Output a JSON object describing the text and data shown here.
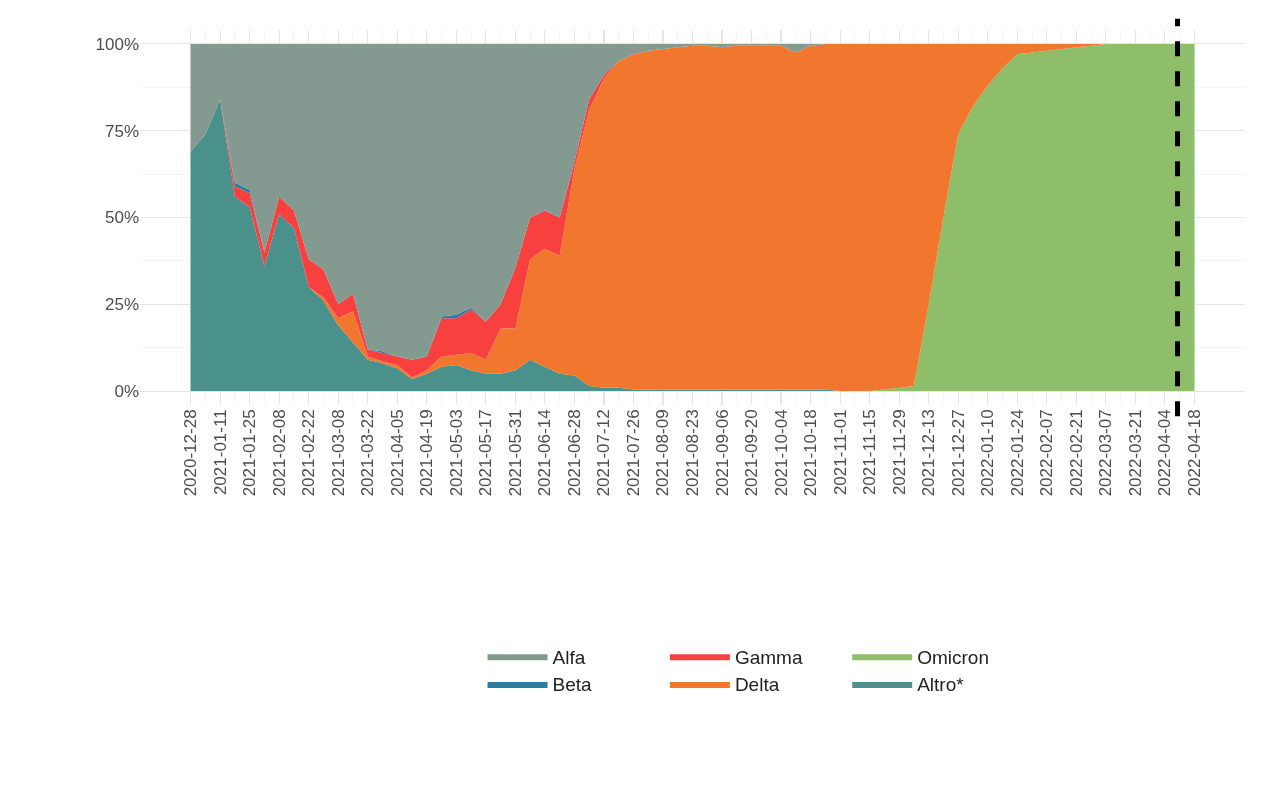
{
  "chart_data": {
    "type": "area",
    "stacked": true,
    "x": [
      "2020-12-28",
      "2021-01-04",
      "2021-01-11",
      "2021-01-18",
      "2021-01-25",
      "2021-02-01",
      "2021-02-08",
      "2021-02-15",
      "2021-02-22",
      "2021-03-01",
      "2021-03-08",
      "2021-03-15",
      "2021-03-22",
      "2021-03-29",
      "2021-04-05",
      "2021-04-12",
      "2021-04-19",
      "2021-04-26",
      "2021-05-03",
      "2021-05-10",
      "2021-05-17",
      "2021-05-24",
      "2021-05-31",
      "2021-06-07",
      "2021-06-14",
      "2021-06-21",
      "2021-06-28",
      "2021-07-05",
      "2021-07-12",
      "2021-07-19",
      "2021-07-26",
      "2021-08-02",
      "2021-08-09",
      "2021-08-16",
      "2021-08-23",
      "2021-08-30",
      "2021-09-06",
      "2021-09-13",
      "2021-09-20",
      "2021-09-27",
      "2021-10-04",
      "2021-10-11",
      "2021-10-18",
      "2021-10-25",
      "2021-11-01",
      "2021-11-08",
      "2021-11-15",
      "2021-11-22",
      "2021-11-29",
      "2021-12-06",
      "2021-12-13",
      "2021-12-20",
      "2021-12-27",
      "2022-01-03",
      "2022-01-10",
      "2022-01-17",
      "2022-01-24",
      "2022-01-31",
      "2022-02-07",
      "2022-02-14",
      "2022-02-21",
      "2022-02-28",
      "2022-03-07",
      "2022-03-14",
      "2022-03-21",
      "2022-03-28",
      "2022-04-04",
      "2022-04-11",
      "2022-04-18"
    ],
    "series": [
      {
        "name": "Altro*",
        "color": "#4a918b",
        "values": [
          69,
          74,
          84,
          56,
          53,
          36,
          51,
          47,
          30,
          26,
          19,
          14,
          9,
          8,
          6.5,
          3.5,
          5,
          7,
          7.5,
          6,
          5,
          5,
          6,
          9,
          7,
          5,
          4.5,
          1.5,
          1,
          1,
          0.5,
          0.5,
          0.5,
          0.5,
          0.5,
          0.5,
          0.5,
          0.5,
          0.5,
          0.5,
          0.5,
          0.5,
          0.5,
          0.5,
          0,
          null,
          null,
          null,
          null,
          null,
          null,
          null,
          null,
          null,
          null,
          null,
          null,
          null,
          null,
          null,
          null,
          null,
          null,
          null,
          null,
          null,
          null,
          null,
          null
        ]
      },
      {
        "name": "Omicron",
        "color": "#8fbe6a",
        "values": [
          null,
          null,
          null,
          null,
          null,
          null,
          null,
          null,
          null,
          null,
          null,
          null,
          null,
          null,
          null,
          null,
          null,
          null,
          null,
          null,
          null,
          null,
          null,
          null,
          null,
          null,
          null,
          null,
          null,
          null,
          null,
          null,
          null,
          null,
          null,
          null,
          null,
          null,
          null,
          null,
          null,
          null,
          null,
          null,
          null,
          null,
          0,
          0.5,
          1,
          1.5,
          25,
          50,
          74,
          82,
          88,
          93,
          97,
          97.5,
          98,
          98.5,
          99,
          99.5,
          100,
          100,
          100,
          100,
          100,
          100,
          100
        ]
      },
      {
        "name": "Delta",
        "color": "#f1762e",
        "values": [
          null,
          null,
          null,
          null,
          null,
          null,
          null,
          null,
          0,
          1,
          2,
          9,
          1,
          0.5,
          1,
          0.5,
          1,
          3,
          3,
          5,
          4,
          13,
          12,
          29,
          34,
          34,
          59.5,
          79.5,
          89,
          94,
          96.5,
          97.5,
          98,
          98.5,
          99,
          99,
          98.5,
          99,
          99,
          99,
          99,
          97,
          99,
          99.5,
          100,
          100,
          100,
          99.5,
          99,
          98.5,
          75,
          50,
          26,
          18,
          12,
          7,
          3,
          2.5,
          2,
          1.5,
          1,
          0.5,
          0,
          null,
          null,
          null,
          null,
          null,
          null
        ]
      },
      {
        "name": "Gamma",
        "color": "#f8403f",
        "values": [
          null,
          null,
          0,
          3,
          4,
          4,
          5,
          5,
          8,
          8,
          4,
          5,
          2,
          2.5,
          2.5,
          5,
          4,
          11,
          10.5,
          12.5,
          11,
          7,
          17.5,
          12,
          11,
          11,
          2,
          3,
          1,
          0,
          null,
          null,
          null,
          null,
          null,
          null,
          null,
          null,
          null,
          null,
          null,
          null,
          null,
          null,
          null,
          null,
          null,
          null,
          null,
          null,
          null,
          null,
          null,
          null,
          null,
          null,
          null,
          null,
          null,
          null,
          null,
          null,
          null,
          null,
          null,
          null,
          null,
          null,
          null
        ]
      },
      {
        "name": "Beta",
        "color": "#2b7ea1",
        "values": [
          null,
          null,
          0,
          1,
          1,
          0,
          null,
          null,
          null,
          null,
          null,
          null,
          0,
          0.5,
          0,
          null,
          0,
          0.5,
          1,
          0.5,
          0,
          null,
          null,
          null,
          null,
          null,
          null,
          null,
          null,
          null,
          null,
          null,
          null,
          null,
          null,
          null,
          null,
          null,
          null,
          null,
          null,
          null,
          null,
          null,
          null,
          null,
          null,
          null,
          null,
          null,
          null,
          null,
          null,
          null,
          null,
          null,
          null,
          null,
          null,
          null,
          null,
          null,
          null,
          null,
          null,
          null,
          null,
          null,
          null
        ]
      },
      {
        "name": "Alfa",
        "color": "#84998f",
        "values": [
          31,
          26,
          16,
          40,
          42,
          60,
          44,
          48,
          62,
          65,
          75,
          72,
          88,
          88.5,
          90,
          91,
          90,
          78.5,
          78,
          76,
          80,
          75,
          64.5,
          50,
          48,
          50,
          34,
          16,
          9,
          5,
          3,
          2,
          1.5,
          1,
          0.5,
          0.5,
          1,
          0.5,
          0.5,
          0.5,
          0.5,
          2.5,
          0.5,
          0,
          null,
          null,
          null,
          null,
          null,
          null,
          null,
          null,
          null,
          null,
          null,
          null,
          null,
          null,
          null,
          null,
          null,
          null,
          null,
          null,
          null,
          null,
          null,
          null,
          null
        ]
      }
    ],
    "xlim": [
      "2020-12-04",
      "2022-05-12"
    ],
    "xticks": [
      "2020-12-28",
      "2021-01-11",
      "2021-01-25",
      "2021-02-08",
      "2021-02-22",
      "2021-03-08",
      "2021-03-22",
      "2021-04-05",
      "2021-04-19",
      "2021-05-03",
      "2021-05-17",
      "2021-05-31",
      "2021-06-14",
      "2021-06-28",
      "2021-07-12",
      "2021-07-26",
      "2021-08-09",
      "2021-08-23",
      "2021-09-06",
      "2021-09-20",
      "2021-10-04",
      "2021-10-18",
      "2021-11-01",
      "2021-11-15",
      "2021-11-29",
      "2021-12-13",
      "2021-12-27",
      "2022-01-10",
      "2022-01-24",
      "2022-02-07",
      "2022-02-21",
      "2022-03-07",
      "2022-03-21",
      "2022-04-04",
      "2022-04-18"
    ],
    "ylim": [
      -4,
      104
    ],
    "yticks": [
      {
        "value": 0,
        "label": "0%"
      },
      {
        "value": 25,
        "label": "25%"
      },
      {
        "value": 50,
        "label": "50%"
      },
      {
        "value": 75,
        "label": "75%"
      },
      {
        "value": 100,
        "label": "100%"
      }
    ],
    "ref_lines": [
      {
        "axis": "x",
        "value": "2022-04-10",
        "color": "#000000",
        "line_style": "dashed"
      }
    ],
    "grid": true,
    "legend": "bottom"
  }
}
